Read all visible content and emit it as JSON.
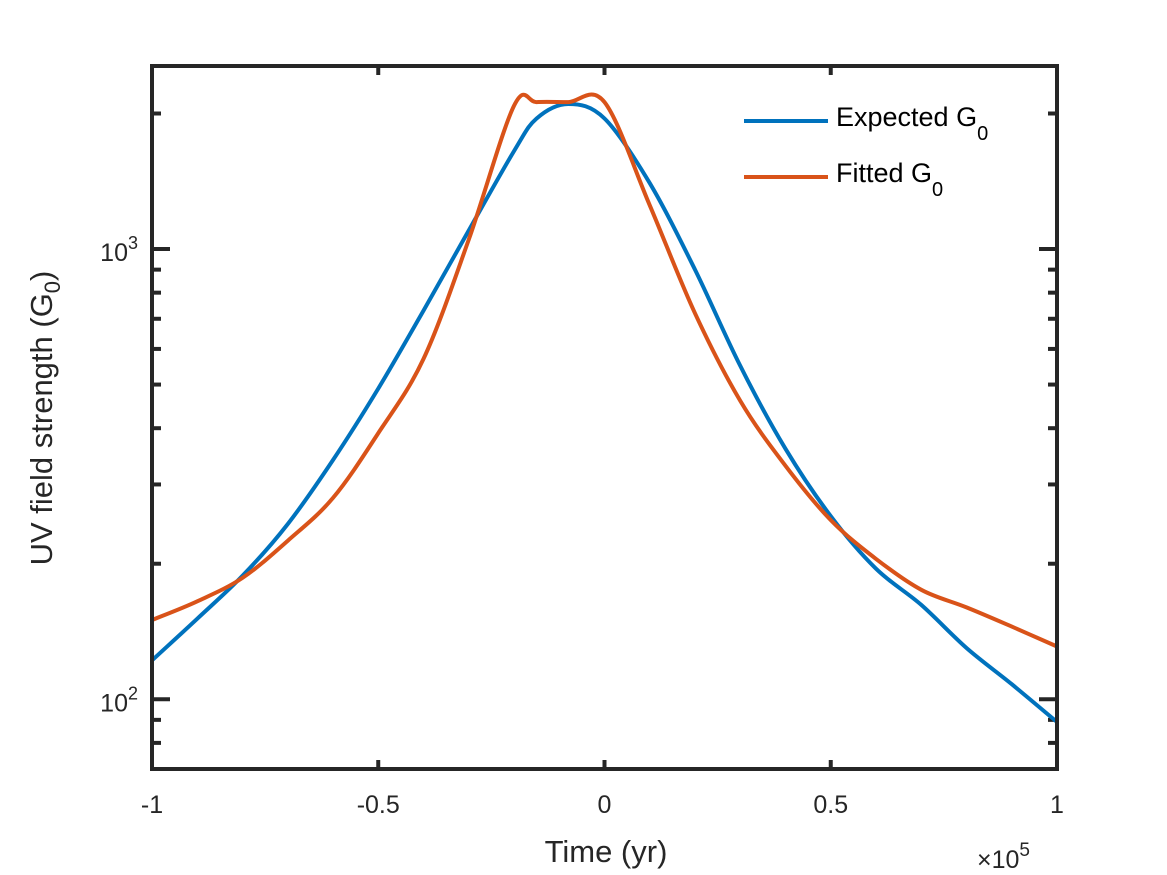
{
  "chart_data": {
    "type": "line",
    "xlabel": "Time (yr)",
    "ylabel_main": "UV field strength (G",
    "ylabel_sub": "0",
    "ylabel_close": ")",
    "x_exponent_prefix": "×10",
    "x_exponent_power": "5",
    "xlim": [
      -1,
      1
    ],
    "ylim": [
      70,
      2550
    ],
    "yscale": "log",
    "grid": false,
    "legend_position": "top-right",
    "xticks": [
      {
        "value": -1,
        "label": "-1"
      },
      {
        "value": -0.5,
        "label": "-0.5"
      },
      {
        "value": 0,
        "label": "0"
      },
      {
        "value": 0.5,
        "label": "0.5"
      },
      {
        "value": 1,
        "label": "1"
      }
    ],
    "yticks_major": [
      {
        "value": 100,
        "base": "10",
        "power": "2"
      },
      {
        "value": 1000,
        "base": "10",
        "power": "3"
      }
    ],
    "x": [
      -1.0,
      -0.9,
      -0.8,
      -0.7,
      -0.6,
      -0.5,
      -0.4,
      -0.3,
      -0.2,
      -0.15,
      -0.08,
      0.0,
      0.1,
      0.2,
      0.3,
      0.4,
      0.5,
      0.6,
      0.7,
      0.8,
      0.9,
      1.0
    ],
    "series": [
      {
        "name_main": "Expected G",
        "name_sub": "0",
        "color": "#0072BD",
        "values": [
          122,
          151,
          188,
          245,
          340,
          490,
          730,
          1100,
          1650,
          1950,
          2100,
          1950,
          1400,
          900,
          550,
          360,
          255,
          195,
          162,
          130,
          108,
          89
        ]
      },
      {
        "name_main": "Fitted G",
        "name_sub": "0",
        "color": "#D95319",
        "values": [
          150,
          165,
          186,
          225,
          280,
          390,
          570,
          1050,
          2080,
          2120,
          2120,
          2120,
          1250,
          720,
          460,
          330,
          250,
          205,
          175,
          160,
          145,
          131
        ]
      }
    ]
  }
}
